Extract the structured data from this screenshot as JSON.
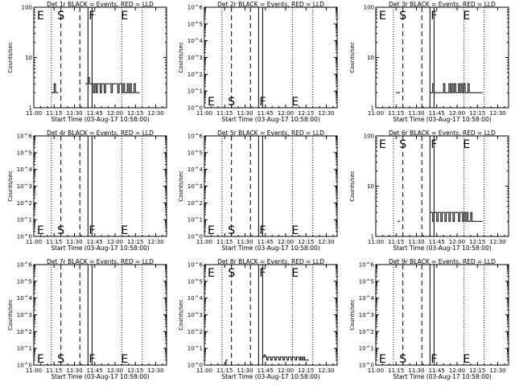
{
  "figure": {
    "xlabel": "Start Time (03-Aug-17 10:58:00)",
    "ylabel": "Counts/sec",
    "xticks": [
      "11:00",
      "11:15",
      "11:30",
      "11:45",
      "12:00",
      "12:15",
      "12:30"
    ]
  },
  "chart_data": [
    {
      "type": "line",
      "title": "Det 1r BLACK = Events, RED = LLD",
      "y_scale": "log",
      "ylim": [
        1,
        100
      ],
      "ytick_labels": [
        "1",
        "10",
        "100"
      ],
      "markers": [
        {
          "label": "E",
          "pos": "high"
        },
        {
          "label": "S",
          "pos": "high"
        },
        {
          "label": "F",
          "pos": "high"
        },
        {
          "label": "E",
          "pos": "high"
        }
      ],
      "series": [
        {
          "x": [
            "11:13",
            "11:14",
            "11:15",
            "11:16",
            "11:17",
            "11:38",
            "11:39",
            "11:40",
            "11:41",
            "11:42",
            "11:43",
            "11:44",
            "11:45",
            "11:46",
            "11:47",
            "11:48",
            "11:49",
            "11:50",
            "11:51",
            "11:52",
            "11:53",
            "11:54",
            "11:55",
            "11:56",
            "11:57",
            "11:58",
            "11:59",
            "12:00",
            "12:01",
            "12:02",
            "12:03",
            "12:04",
            "12:05",
            "12:06",
            "12:07",
            "12:08",
            "12:09",
            "12:10",
            "12:11",
            "12:12",
            "12:13",
            "12:14",
            "12:15",
            "12:16",
            "12:17"
          ],
          "values": [
            2,
            2,
            3,
            2,
            2,
            3,
            3,
            4,
            3,
            3,
            3,
            2,
            3,
            2,
            3,
            3,
            2,
            3,
            3,
            2,
            3,
            3,
            3,
            3,
            2,
            3,
            3,
            3,
            3,
            2,
            3,
            3,
            2,
            3,
            2,
            2,
            3,
            2,
            3,
            2,
            2,
            3,
            2,
            2,
            2
          ]
        }
      ]
    },
    {
      "type": "line",
      "title": "Det 2r BLACK = Events, RED = LLD",
      "y_scale": "log",
      "ylim": [
        1,
        1000000
      ],
      "ytick_labels": [
        "10^0",
        "10^1",
        "10^2",
        "10^3",
        "10^4",
        "10^5",
        "10^6"
      ],
      "markers": [
        {
          "label": "E",
          "pos": "low"
        },
        {
          "label": "S",
          "pos": "low"
        },
        {
          "label": "F",
          "pos": "low"
        },
        {
          "label": "E",
          "pos": "low"
        }
      ],
      "series": []
    },
    {
      "type": "line",
      "title": "Det 3r BLACK = Events, RED = LLD",
      "y_scale": "log",
      "ylim": [
        1,
        100
      ],
      "ytick_labels": [
        "1",
        "10",
        "100"
      ],
      "markers": [
        {
          "label": "E",
          "pos": "high"
        },
        {
          "label": "S",
          "pos": "high"
        },
        {
          "label": "F",
          "pos": "high"
        },
        {
          "label": "E",
          "pos": "high"
        }
      ],
      "series": [
        {
          "x": [
            "11:15",
            "11:16",
            "11:17",
            "11:40",
            "11:41",
            "11:42",
            "11:43",
            "11:44",
            "11:45",
            "11:46",
            "11:47",
            "11:48",
            "11:49",
            "11:50",
            "11:51",
            "11:52",
            "11:53",
            "11:54",
            "11:55",
            "11:56",
            "11:57",
            "11:58",
            "11:59",
            "12:00",
            "12:01",
            "12:02",
            "12:03",
            "12:04",
            "12:05",
            "12:06",
            "12:07",
            "12:08",
            "12:09",
            "12:10",
            "12:11",
            "12:12",
            "12:13",
            "12:14",
            "12:15",
            "12:16",
            "12:17",
            "12:18"
          ],
          "values": [
            2,
            2,
            2,
            2,
            2,
            3,
            2,
            2,
            2,
            2,
            2,
            2,
            2,
            3,
            2,
            2,
            2,
            3,
            2,
            3,
            2,
            3,
            2,
            2,
            3,
            2,
            3,
            2,
            3,
            2,
            2,
            3,
            2,
            2,
            2,
            2,
            2,
            2,
            2,
            2,
            2,
            2
          ]
        }
      ]
    },
    {
      "type": "line",
      "title": "Det 4r BLACK = Events, RED = LLD",
      "y_scale": "log",
      "ylim": [
        1,
        1000000
      ],
      "ytick_labels": [
        "10^0",
        "10^1",
        "10^2",
        "10^3",
        "10^4",
        "10^5",
        "10^6"
      ],
      "markers": [
        {
          "label": "E",
          "pos": "low"
        },
        {
          "label": "S",
          "pos": "low"
        },
        {
          "label": "F",
          "pos": "low"
        },
        {
          "label": "E",
          "pos": "low"
        }
      ],
      "series": []
    },
    {
      "type": "line",
      "title": "Det 5r BLACK = Events, RED = LLD",
      "y_scale": "log",
      "ylim": [
        1,
        1000000
      ],
      "ytick_labels": [
        "10^0",
        "10^1",
        "10^2",
        "10^3",
        "10^4",
        "10^5",
        "10^6"
      ],
      "markers": [
        {
          "label": "E",
          "pos": "low"
        },
        {
          "label": "S",
          "pos": "low"
        },
        {
          "label": "F",
          "pos": "low"
        },
        {
          "label": "E",
          "pos": "low"
        }
      ],
      "series": []
    },
    {
      "type": "line",
      "title": "Det 6r BLACK = Events, RED = LLD",
      "y_scale": "log",
      "ylim": [
        1,
        100
      ],
      "ytick_labels": [
        "1",
        "10",
        "100"
      ],
      "markers": [
        {
          "label": "E",
          "pos": "high"
        },
        {
          "label": "S",
          "pos": "high"
        },
        {
          "label": "F",
          "pos": "high"
        },
        {
          "label": "E",
          "pos": "high"
        }
      ],
      "series": [
        {
          "x": [
            "11:16",
            "11:17",
            "11:40",
            "11:41",
            "11:42",
            "11:43",
            "11:44",
            "11:45",
            "11:46",
            "11:47",
            "11:48",
            "11:49",
            "11:50",
            "11:51",
            "11:52",
            "11:53",
            "11:54",
            "11:55",
            "11:56",
            "11:57",
            "11:58",
            "11:59",
            "12:00",
            "12:01",
            "12:02",
            "12:03",
            "12:04",
            "12:05",
            "12:06",
            "12:07",
            "12:08",
            "12:09",
            "12:10",
            "12:11",
            "12:12",
            "12:13",
            "12:14",
            "12:15",
            "12:16",
            "12:17",
            "12:18"
          ],
          "values": [
            2,
            2,
            3,
            3,
            2,
            3,
            3,
            2,
            3,
            3,
            2,
            3,
            3,
            2,
            3,
            3,
            2,
            3,
            3,
            2,
            3,
            3,
            3,
            2,
            3,
            3,
            2,
            3,
            2,
            3,
            2,
            2,
            3,
            2,
            2,
            2,
            2,
            2,
            2,
            2,
            2
          ]
        }
      ]
    },
    {
      "type": "line",
      "title": "Det 7r BLACK = Events, RED = LLD",
      "y_scale": "log",
      "ylim": [
        1,
        1000000
      ],
      "ytick_labels": [
        "10^0",
        "10^1",
        "10^2",
        "10^3",
        "10^4",
        "10^5",
        "10^6"
      ],
      "markers": [
        {
          "label": "E",
          "pos": "low"
        },
        {
          "label": "S",
          "pos": "low"
        },
        {
          "label": "F",
          "pos": "low"
        },
        {
          "label": "E",
          "pos": "low"
        }
      ],
      "series": []
    },
    {
      "type": "line",
      "title": "Det 8r BLACK = Events, RED = LLD",
      "y_scale": "log",
      "ylim": [
        1,
        1000000
      ],
      "ytick_labels": [
        "10^0",
        "10^1",
        "10^2",
        "10^3",
        "10^4",
        "10^5",
        "10^6"
      ],
      "markers": [
        {
          "label": "E",
          "pos": "high"
        },
        {
          "label": "S",
          "pos": "high"
        },
        {
          "label": "F",
          "pos": "high"
        },
        {
          "label": "E",
          "pos": "high"
        }
      ],
      "series": [
        {
          "x": [
            "11:15",
            "11:16",
            "11:43",
            "11:44",
            "11:45",
            "11:46",
            "11:47",
            "11:48",
            "11:49",
            "11:50",
            "11:51",
            "11:52",
            "11:53",
            "11:54",
            "11:55",
            "11:56",
            "11:57",
            "11:58",
            "11:59",
            "12:00",
            "12:01",
            "12:02",
            "12:03",
            "12:04",
            "12:05",
            "12:06",
            "12:07",
            "12:08",
            "12:09",
            "12:10",
            "12:11",
            "12:12",
            "12:13",
            "12:14",
            "12:15",
            "12:16"
          ],
          "values": [
            1,
            2,
            3,
            4,
            3,
            2,
            3,
            3,
            2,
            3,
            3,
            2,
            3,
            3,
            2,
            3,
            3,
            2,
            3,
            3,
            2,
            3,
            3,
            2,
            3,
            3,
            2,
            3,
            3,
            2,
            3,
            2,
            3,
            2,
            2,
            2
          ]
        }
      ]
    },
    {
      "type": "line",
      "title": "Det 9r BLACK = Events, RED = LLD",
      "y_scale": "log",
      "ylim": [
        1,
        1000000
      ],
      "ytick_labels": [
        "10^0",
        "10^1",
        "10^2",
        "10^3",
        "10^4",
        "10^5",
        "10^6"
      ],
      "markers": [
        {
          "label": "E",
          "pos": "low"
        },
        {
          "label": "S",
          "pos": "low"
        },
        {
          "label": "F",
          "pos": "low"
        },
        {
          "label": "E",
          "pos": "low"
        }
      ],
      "series": []
    }
  ]
}
